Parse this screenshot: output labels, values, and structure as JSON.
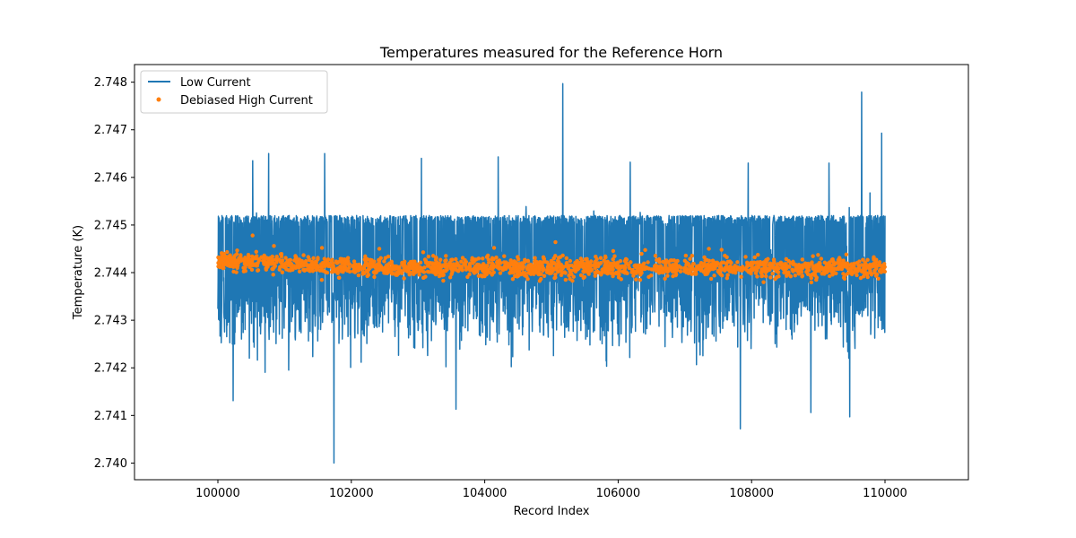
{
  "chart_data": {
    "type": "line",
    "title": "Temperatures measured for the Reference Horn",
    "xlabel": "Record Index",
    "ylabel": "Temperature (K)",
    "xlim": [
      98750,
      111250
    ],
    "ylim": [
      2.73965,
      2.74837
    ],
    "x_ticks": [
      100000,
      102000,
      104000,
      106000,
      108000,
      110000
    ],
    "x_tick_labels": [
      "100000",
      "102000",
      "104000",
      "106000",
      "108000",
      "110000"
    ],
    "y_ticks": [
      2.74,
      2.741,
      2.742,
      2.743,
      2.744,
      2.745,
      2.746,
      2.747,
      2.748
    ],
    "y_tick_labels": [
      "2.740",
      "2.741",
      "2.742",
      "2.743",
      "2.744",
      "2.745",
      "2.746",
      "2.747",
      "2.748"
    ],
    "legend_position": "upper-left",
    "series": [
      {
        "name": "Low Current",
        "kind": "line",
        "color": "#1f77b4",
        "x_start": 100000,
        "x_end": 110000,
        "typical_center": 2.7441,
        "typical_upper": 2.7452,
        "typical_lower": 2.7432,
        "notable_points": [
          {
            "x": 101740,
            "y": 2.74
          },
          {
            "x": 105170,
            "y": 2.74797
          },
          {
            "x": 109650,
            "y": 2.74779
          },
          {
            "x": 109950,
            "y": 2.74693
          },
          {
            "x": 107830,
            "y": 2.74072
          },
          {
            "x": 109470,
            "y": 2.74097
          },
          {
            "x": 101600,
            "y": 2.7411
          },
          {
            "x": 103570,
            "y": 2.74113
          },
          {
            "x": 108890,
            "y": 2.74106
          },
          {
            "x": 100230,
            "y": 2.74131
          },
          {
            "x": 101600,
            "y": 2.7465
          },
          {
            "x": 100760,
            "y": 2.7465
          },
          {
            "x": 104200,
            "y": 2.74643
          },
          {
            "x": 103050,
            "y": 2.7464
          },
          {
            "x": 106180,
            "y": 2.74632
          },
          {
            "x": 109160,
            "y": 2.7463
          },
          {
            "x": 107950,
            "y": 2.7463
          },
          {
            "x": 100520,
            "y": 2.74635
          }
        ]
      },
      {
        "name": "Debiased High Current",
        "kind": "scatter",
        "color": "#ff7f0e",
        "x_start": 100000,
        "x_end": 110000,
        "typical_center": 2.7441,
        "spread": 0.00018,
        "outliers": [
          {
            "x": 100520,
            "y": 2.74478
          },
          {
            "x": 100840,
            "y": 2.74456
          },
          {
            "x": 101560,
            "y": 2.74452
          },
          {
            "x": 102420,
            "y": 2.7445
          },
          {
            "x": 104140,
            "y": 2.74452
          },
          {
            "x": 105060,
            "y": 2.74464
          },
          {
            "x": 105170,
            "y": 2.74436
          },
          {
            "x": 107360,
            "y": 2.7445
          },
          {
            "x": 107550,
            "y": 2.74448
          },
          {
            "x": 109420,
            "y": 2.74438
          }
        ]
      }
    ]
  }
}
